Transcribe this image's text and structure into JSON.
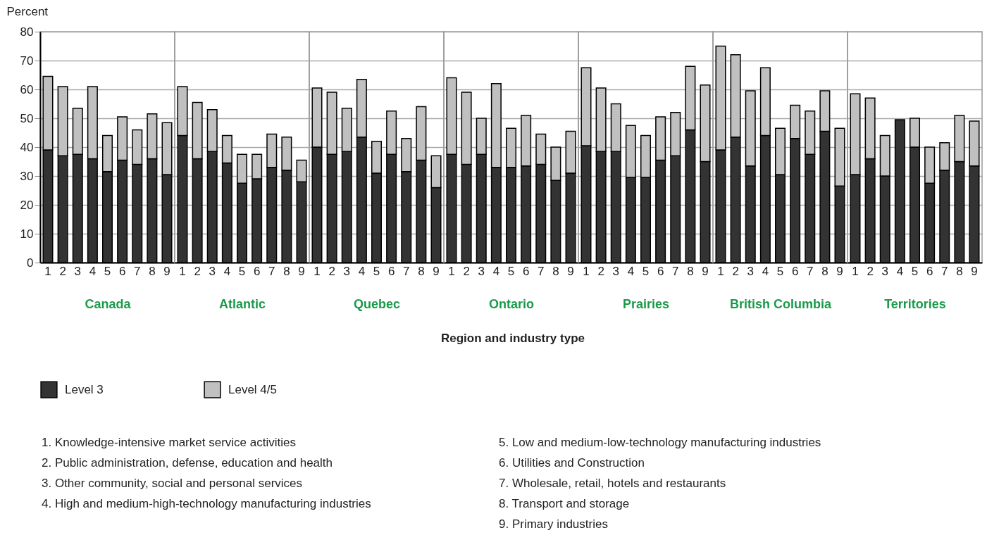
{
  "chart_data": [
    {
      "type": "bar",
      "xlabel": "Canada",
      "ylabel": "Percent",
      "categories": [
        "1",
        "2",
        "3",
        "4",
        "5",
        "6",
        "7",
        "8",
        "9"
      ],
      "stacked": true,
      "ylim": [
        0,
        80
      ],
      "yticks": [
        0,
        10,
        20,
        30,
        40,
        50,
        60,
        70,
        80
      ],
      "grid": "y",
      "legend": "bottom",
      "series": [
        {
          "name": "Level 3",
          "color": "#333333",
          "values": [
            39,
            37,
            37.5,
            36,
            31.5,
            35.5,
            34,
            36,
            30.5
          ]
        },
        {
          "name": "Level 4/5",
          "color": "#c0c0c0",
          "values": [
            25.5,
            24,
            16,
            25,
            12.5,
            15,
            12,
            15.5,
            18
          ]
        }
      ],
      "annotations": [
        "Region and industry type",
        "1.  Knowledge-intensive market service activities",
        "2.  Public administration, defense, education and health",
        "3.  Other community, social and personal services",
        "4.  High and medium-high-technology manufacturing industries",
        "5.  Low and medium-low-technology manufacturing industries",
        "6.  Utilities and Construction",
        "7.  Wholesale, retail, hotels and restaurants",
        "8.  Transport and storage",
        "9.  Primary industries"
      ]
    },
    {
      "type": "bar",
      "xlabel": "Atlantic",
      "categories": [
        "1",
        "2",
        "3",
        "4",
        "5",
        "6",
        "7",
        "8",
        "9"
      ],
      "stacked": true,
      "ylim": [
        0,
        80
      ],
      "yticks": [
        0,
        10,
        20,
        30,
        40,
        50,
        60,
        70,
        80
      ],
      "grid": "y",
      "tick_labels": "x",
      "series": [
        {
          "color": "#333333",
          "values": [
            44,
            36,
            38.5,
            34.5,
            27.5,
            29,
            33,
            32,
            28
          ]
        },
        {
          "color": "#c0c0c0",
          "values": [
            17,
            19.5,
            14.5,
            9.5,
            10,
            8.5,
            11.5,
            11.5,
            7.5
          ]
        }
      ]
    },
    {
      "type": "bar",
      "xlabel": "Quebec",
      "categories": [
        "1",
        "2",
        "3",
        "4",
        "5",
        "6",
        "7",
        "8",
        "9"
      ],
      "stacked": true,
      "ylim": [
        0,
        80
      ],
      "yticks": [
        0,
        10,
        20,
        30,
        40,
        50,
        60,
        70,
        80
      ],
      "grid": "y",
      "tick_labels": "x",
      "series": [
        {
          "color": "#333333",
          "values": [
            40,
            37.5,
            38.5,
            43.5,
            31,
            37.5,
            31.5,
            35.5,
            26
          ]
        },
        {
          "color": "#c0c0c0",
          "values": [
            20.5,
            21.5,
            15,
            20,
            11,
            15,
            11.5,
            18.5,
            11
          ]
        }
      ]
    },
    {
      "type": "bar",
      "xlabel": "Ontario",
      "categories": [
        "1",
        "2",
        "3",
        "4",
        "5",
        "6",
        "7",
        "8",
        "9"
      ],
      "stacked": true,
      "ylim": [
        0,
        80
      ],
      "yticks": [
        0,
        10,
        20,
        30,
        40,
        50,
        60,
        70,
        80
      ],
      "grid": "y",
      "tick_labels": "x",
      "series": [
        {
          "color": "#333333",
          "values": [
            37.5,
            34,
            37.5,
            33,
            33,
            33.5,
            34,
            28.5,
            31
          ]
        },
        {
          "color": "#c0c0c0",
          "values": [
            26.5,
            25,
            12.5,
            29,
            13.5,
            17.5,
            10.5,
            11.5,
            14.5
          ]
        }
      ]
    },
    {
      "type": "bar",
      "xlabel": "Prairies",
      "categories": [
        "1",
        "2",
        "3",
        "4",
        "5",
        "6",
        "7",
        "8",
        "9"
      ],
      "stacked": true,
      "ylim": [
        0,
        80
      ],
      "yticks": [
        0,
        10,
        20,
        30,
        40,
        50,
        60,
        70,
        80
      ],
      "grid": "y",
      "tick_labels": "x",
      "series": [
        {
          "color": "#333333",
          "values": [
            40.5,
            38.5,
            38.5,
            29.5,
            29.5,
            35.5,
            37,
            46,
            35
          ]
        },
        {
          "color": "#c0c0c0",
          "values": [
            27,
            22,
            16.5,
            18,
            14.5,
            15,
            15,
            22,
            26.5
          ]
        }
      ]
    },
    {
      "type": "bar",
      "xlabel": "British Columbia",
      "categories": [
        "1",
        "2",
        "3",
        "4",
        "5",
        "6",
        "7",
        "8",
        "9"
      ],
      "stacked": true,
      "ylim": [
        0,
        80
      ],
      "yticks": [
        0,
        10,
        20,
        30,
        40,
        50,
        60,
        70,
        80
      ],
      "grid": "y",
      "tick_labels": "x",
      "series": [
        {
          "color": "#333333",
          "values": [
            39,
            43.5,
            33.5,
            44,
            30.5,
            43,
            37.5,
            45.5,
            26.5
          ]
        },
        {
          "color": "#c0c0c0",
          "values": [
            36,
            28.5,
            26,
            23.5,
            16,
            11.5,
            15,
            14,
            20
          ]
        }
      ]
    },
    {
      "type": "bar",
      "xlabel": "Territories",
      "categories": [
        "1",
        "2",
        "3",
        "4",
        "5",
        "6",
        "7",
        "8",
        "9"
      ],
      "stacked": true,
      "ylim": [
        0,
        80
      ],
      "yticks": [
        0,
        10,
        20,
        30,
        40,
        50,
        60,
        70,
        80
      ],
      "grid": "y",
      "tick_labels": "x",
      "series": [
        {
          "color": "#333333",
          "values": [
            30.5,
            36,
            30,
            49.5,
            40,
            27.5,
            32,
            35,
            33.5
          ]
        },
        {
          "color": "#c0c0c0",
          "values": [
            28,
            21,
            14,
            0,
            10,
            12.5,
            9.5,
            16,
            15.5
          ]
        }
      ]
    }
  ]
}
